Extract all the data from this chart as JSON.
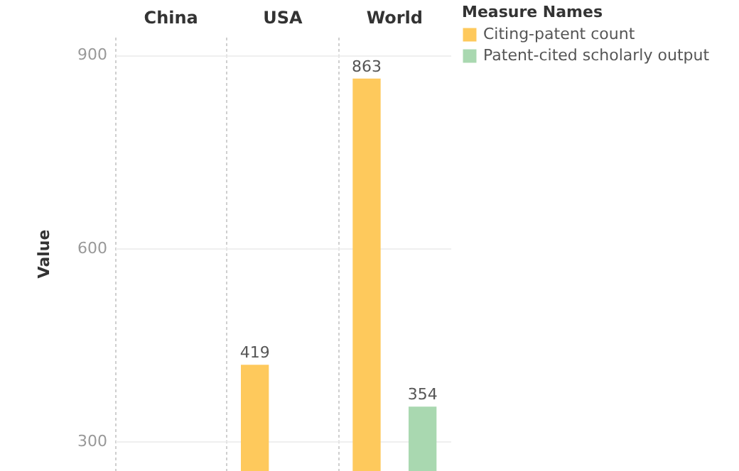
{
  "chart_data": {
    "type": "bar",
    "ylabel": "Value",
    "legend_title": "Measure Names",
    "categories": [
      "China",
      "USA",
      "World"
    ],
    "series": [
      {
        "name": "Citing-patent count",
        "color": "#fec95c",
        "values": [
          null,
          419,
          863
        ]
      },
      {
        "name": "Patent-cited scholarly output",
        "color": "#a9d8b0",
        "values": [
          null,
          null,
          354
        ]
      }
    ],
    "ylim": [
      254,
      930
    ],
    "yticks": [
      300,
      600,
      900
    ],
    "grid": "y",
    "legend": "top right",
    "data_labels": true
  }
}
